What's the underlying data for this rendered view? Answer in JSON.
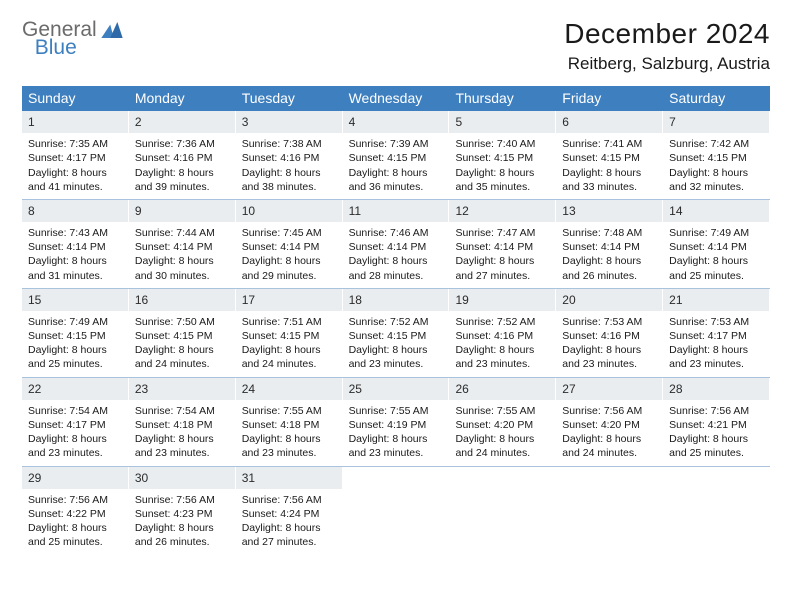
{
  "brand": {
    "part1": "General",
    "part2": "Blue"
  },
  "title": "December 2024",
  "location": "Reitberg, Salzburg, Austria",
  "colors": {
    "header_bg": "#3d7fbf",
    "header_text": "#ffffff",
    "daynum_bg": "#e9edf0",
    "week_border": "#a9c3de"
  },
  "dow": [
    "Sunday",
    "Monday",
    "Tuesday",
    "Wednesday",
    "Thursday",
    "Friday",
    "Saturday"
  ],
  "weeks": [
    [
      {
        "n": "1",
        "sr": "7:35 AM",
        "ss": "4:17 PM",
        "dl": "8 hours and 41 minutes."
      },
      {
        "n": "2",
        "sr": "7:36 AM",
        "ss": "4:16 PM",
        "dl": "8 hours and 39 minutes."
      },
      {
        "n": "3",
        "sr": "7:38 AM",
        "ss": "4:16 PM",
        "dl": "8 hours and 38 minutes."
      },
      {
        "n": "4",
        "sr": "7:39 AM",
        "ss": "4:15 PM",
        "dl": "8 hours and 36 minutes."
      },
      {
        "n": "5",
        "sr": "7:40 AM",
        "ss": "4:15 PM",
        "dl": "8 hours and 35 minutes."
      },
      {
        "n": "6",
        "sr": "7:41 AM",
        "ss": "4:15 PM",
        "dl": "8 hours and 33 minutes."
      },
      {
        "n": "7",
        "sr": "7:42 AM",
        "ss": "4:15 PM",
        "dl": "8 hours and 32 minutes."
      }
    ],
    [
      {
        "n": "8",
        "sr": "7:43 AM",
        "ss": "4:14 PM",
        "dl": "8 hours and 31 minutes."
      },
      {
        "n": "9",
        "sr": "7:44 AM",
        "ss": "4:14 PM",
        "dl": "8 hours and 30 minutes."
      },
      {
        "n": "10",
        "sr": "7:45 AM",
        "ss": "4:14 PM",
        "dl": "8 hours and 29 minutes."
      },
      {
        "n": "11",
        "sr": "7:46 AM",
        "ss": "4:14 PM",
        "dl": "8 hours and 28 minutes."
      },
      {
        "n": "12",
        "sr": "7:47 AM",
        "ss": "4:14 PM",
        "dl": "8 hours and 27 minutes."
      },
      {
        "n": "13",
        "sr": "7:48 AM",
        "ss": "4:14 PM",
        "dl": "8 hours and 26 minutes."
      },
      {
        "n": "14",
        "sr": "7:49 AM",
        "ss": "4:14 PM",
        "dl": "8 hours and 25 minutes."
      }
    ],
    [
      {
        "n": "15",
        "sr": "7:49 AM",
        "ss": "4:15 PM",
        "dl": "8 hours and 25 minutes."
      },
      {
        "n": "16",
        "sr": "7:50 AM",
        "ss": "4:15 PM",
        "dl": "8 hours and 24 minutes."
      },
      {
        "n": "17",
        "sr": "7:51 AM",
        "ss": "4:15 PM",
        "dl": "8 hours and 24 minutes."
      },
      {
        "n": "18",
        "sr": "7:52 AM",
        "ss": "4:15 PM",
        "dl": "8 hours and 23 minutes."
      },
      {
        "n": "19",
        "sr": "7:52 AM",
        "ss": "4:16 PM",
        "dl": "8 hours and 23 minutes."
      },
      {
        "n": "20",
        "sr": "7:53 AM",
        "ss": "4:16 PM",
        "dl": "8 hours and 23 minutes."
      },
      {
        "n": "21",
        "sr": "7:53 AM",
        "ss": "4:17 PM",
        "dl": "8 hours and 23 minutes."
      }
    ],
    [
      {
        "n": "22",
        "sr": "7:54 AM",
        "ss": "4:17 PM",
        "dl": "8 hours and 23 minutes."
      },
      {
        "n": "23",
        "sr": "7:54 AM",
        "ss": "4:18 PM",
        "dl": "8 hours and 23 minutes."
      },
      {
        "n": "24",
        "sr": "7:55 AM",
        "ss": "4:18 PM",
        "dl": "8 hours and 23 minutes."
      },
      {
        "n": "25",
        "sr": "7:55 AM",
        "ss": "4:19 PM",
        "dl": "8 hours and 23 minutes."
      },
      {
        "n": "26",
        "sr": "7:55 AM",
        "ss": "4:20 PM",
        "dl": "8 hours and 24 minutes."
      },
      {
        "n": "27",
        "sr": "7:56 AM",
        "ss": "4:20 PM",
        "dl": "8 hours and 24 minutes."
      },
      {
        "n": "28",
        "sr": "7:56 AM",
        "ss": "4:21 PM",
        "dl": "8 hours and 25 minutes."
      }
    ],
    [
      {
        "n": "29",
        "sr": "7:56 AM",
        "ss": "4:22 PM",
        "dl": "8 hours and 25 minutes."
      },
      {
        "n": "30",
        "sr": "7:56 AM",
        "ss": "4:23 PM",
        "dl": "8 hours and 26 minutes."
      },
      {
        "n": "31",
        "sr": "7:56 AM",
        "ss": "4:24 PM",
        "dl": "8 hours and 27 minutes."
      },
      null,
      null,
      null,
      null
    ]
  ],
  "labels": {
    "sunrise": "Sunrise:",
    "sunset": "Sunset:",
    "daylight": "Daylight:"
  }
}
